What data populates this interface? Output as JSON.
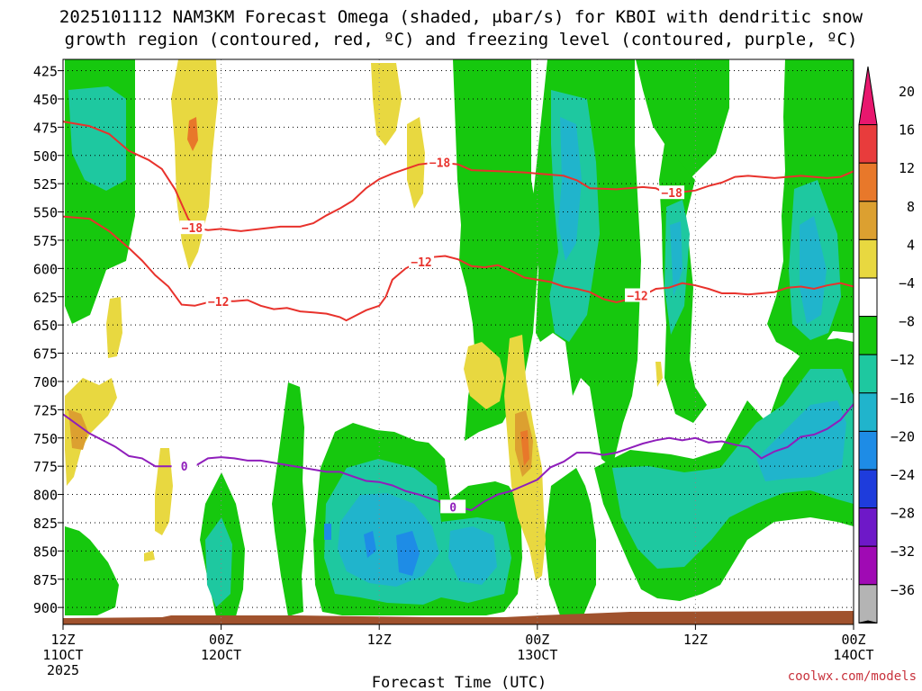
{
  "title": {
    "line1": "2025101112 NAM3KM Forecast Omega (shaded, μbar/s) for KBOI with dendritic snow",
    "line2": "growth region (contoured, red, ºC) and freezing level (contoured, purple, ºC)"
  },
  "credit": "coolwx.com/models",
  "chart_data": {
    "type": "heatmap",
    "title": "2025101112 NAM3KM Forecast Omega (shaded, μbar/s) for KBOI with dendritic snow growth region (contoured, red, ºC) and freezing level (contoured, purple, ºC)",
    "xlabel": "Forecast Time (UTC)",
    "ylabel": "",
    "x_range_hours": [
      0,
      60
    ],
    "y_range_hPa": [
      415,
      915
    ],
    "y_reversed": true,
    "grid": true,
    "y_ticks": [
      425,
      450,
      475,
      500,
      525,
      550,
      575,
      600,
      625,
      650,
      675,
      700,
      725,
      750,
      775,
      800,
      825,
      850,
      875,
      900
    ],
    "x_ticks": [
      {
        "hour": 0,
        "lines": [
          "12Z",
          "11OCT",
          "2025"
        ]
      },
      {
        "hour": 12,
        "lines": [
          "00Z",
          "12OCT"
        ]
      },
      {
        "hour": 24,
        "lines": [
          "12Z"
        ]
      },
      {
        "hour": 36,
        "lines": [
          "00Z",
          "13OCT"
        ]
      },
      {
        "hour": 48,
        "lines": [
          "12Z"
        ]
      },
      {
        "hour": 60,
        "lines": [
          "00Z",
          "14OCT"
        ]
      }
    ],
    "colorbar": {
      "labels": [
        "20",
        "16",
        "12",
        "8",
        "4",
        "−4",
        "−8",
        "−12",
        "−16",
        "−20",
        "−24",
        "−28",
        "−32",
        "−36"
      ],
      "colors_top_to_bottom": [
        "#e8176e",
        "#e83c3c",
        "#e8782a",
        "#dca030",
        "#e8d840",
        "#ffffff",
        "#16c80e",
        "#1ec8a0",
        "#20b4cc",
        "#1e8ce6",
        "#1e3cdc",
        "#6e18c8",
        "#a00ab4",
        "#b4b4b4",
        "#000000"
      ]
    },
    "contours": [
      {
        "name": "dgz_-18",
        "color": "#e8322c",
        "label": "−18",
        "points": [
          [
            0,
            470
          ],
          [
            2,
            474
          ],
          [
            3.5,
            481
          ],
          [
            5,
            496
          ],
          [
            6.5,
            504
          ],
          [
            7.5,
            512
          ],
          [
            8.5,
            530
          ],
          [
            9.5,
            556
          ],
          [
            10,
            564
          ],
          [
            11,
            566
          ],
          [
            12,
            565
          ],
          [
            13.5,
            567
          ],
          [
            15,
            565
          ],
          [
            16.5,
            563
          ],
          [
            18,
            563
          ],
          [
            19,
            560
          ],
          [
            20,
            553
          ],
          [
            21,
            547
          ],
          [
            22,
            540
          ],
          [
            23,
            529
          ],
          [
            24,
            521
          ],
          [
            25,
            516
          ],
          [
            26,
            512
          ],
          [
            27,
            508
          ],
          [
            28.5,
            506
          ],
          [
            30,
            508
          ],
          [
            31,
            513
          ],
          [
            33,
            514
          ],
          [
            35,
            515
          ],
          [
            37,
            517
          ],
          [
            38,
            518
          ],
          [
            39,
            522
          ],
          [
            40,
            529
          ],
          [
            42,
            530
          ],
          [
            44,
            528
          ],
          [
            45,
            529
          ],
          [
            45.5,
            532
          ],
          [
            46.5,
            533
          ],
          [
            48,
            531
          ],
          [
            49,
            527
          ],
          [
            50,
            524
          ],
          [
            51,
            519
          ],
          [
            52,
            518
          ],
          [
            53,
            519
          ],
          [
            54,
            520
          ],
          [
            56,
            518
          ],
          [
            57,
            519
          ],
          [
            58,
            520
          ],
          [
            59,
            519
          ],
          [
            60,
            514
          ]
        ]
      },
      {
        "name": "dgz_-12",
        "color": "#e8322c",
        "label": "−12",
        "points": [
          [
            0,
            554
          ],
          [
            2,
            556
          ],
          [
            3.5,
            567
          ],
          [
            5,
            582
          ],
          [
            6,
            593
          ],
          [
            7,
            606
          ],
          [
            8,
            616
          ],
          [
            9,
            632
          ],
          [
            10,
            633
          ],
          [
            11,
            630
          ],
          [
            12,
            629
          ],
          [
            13,
            629
          ],
          [
            14,
            628
          ],
          [
            15,
            633
          ],
          [
            16,
            636
          ],
          [
            17,
            635
          ],
          [
            18,
            638
          ],
          [
            19,
            639
          ],
          [
            20,
            640
          ],
          [
            21,
            643
          ],
          [
            21.5,
            646
          ],
          [
            22,
            643
          ],
          [
            23,
            637
          ],
          [
            24,
            633
          ],
          [
            24.5,
            625
          ],
          [
            25,
            610
          ],
          [
            26,
            600
          ],
          [
            27,
            594
          ],
          [
            28,
            590
          ],
          [
            29,
            589
          ],
          [
            30,
            592
          ],
          [
            31,
            598
          ],
          [
            32,
            599
          ],
          [
            33,
            597
          ],
          [
            34,
            602
          ],
          [
            35,
            608
          ],
          [
            36,
            610
          ],
          [
            37,
            612
          ],
          [
            38,
            616
          ],
          [
            39,
            618
          ],
          [
            40,
            621
          ],
          [
            41,
            627
          ],
          [
            42,
            630
          ],
          [
            43,
            627
          ],
          [
            44,
            624
          ],
          [
            45,
            618
          ],
          [
            46,
            617
          ],
          [
            47,
            613
          ],
          [
            48,
            615
          ],
          [
            49,
            618
          ],
          [
            50,
            622
          ],
          [
            51,
            622
          ],
          [
            52,
            623
          ],
          [
            53,
            622
          ],
          [
            54,
            621
          ],
          [
            55,
            617
          ],
          [
            56,
            616
          ],
          [
            57,
            618
          ],
          [
            58,
            615
          ],
          [
            59,
            613
          ],
          [
            60,
            616
          ]
        ]
      },
      {
        "name": "freezing_level_0",
        "color": "#8f1ebb",
        "label": "0",
        "points": [
          [
            0,
            729
          ],
          [
            2,
            746
          ],
          [
            4,
            758
          ],
          [
            5,
            766
          ],
          [
            6,
            768
          ],
          [
            7,
            775
          ],
          [
            8,
            775
          ],
          [
            9,
            775
          ],
          [
            10,
            775
          ],
          [
            11,
            768
          ],
          [
            12,
            767
          ],
          [
            13,
            768
          ],
          [
            14,
            770
          ],
          [
            15,
            770
          ],
          [
            16,
            772
          ],
          [
            17,
            774
          ],
          [
            18,
            776
          ],
          [
            19,
            778
          ],
          [
            20,
            780
          ],
          [
            21,
            780
          ],
          [
            22,
            784
          ],
          [
            23,
            788
          ],
          [
            24,
            789
          ],
          [
            25,
            792
          ],
          [
            26,
            797
          ],
          [
            27,
            800
          ],
          [
            28,
            804
          ],
          [
            29,
            808
          ],
          [
            30,
            811
          ],
          [
            31,
            814
          ],
          [
            32,
            806
          ],
          [
            33,
            800
          ],
          [
            34,
            797
          ],
          [
            35,
            792
          ],
          [
            36,
            787
          ],
          [
            37,
            776
          ],
          [
            38,
            771
          ],
          [
            39,
            763
          ],
          [
            40,
            763
          ],
          [
            41,
            765
          ],
          [
            42,
            763
          ],
          [
            43,
            759
          ],
          [
            44,
            755
          ],
          [
            45,
            752
          ],
          [
            46,
            750
          ],
          [
            47,
            752
          ],
          [
            48,
            750
          ],
          [
            49,
            754
          ],
          [
            50,
            753
          ],
          [
            51,
            756
          ],
          [
            52,
            758
          ],
          [
            53,
            768
          ],
          [
            54,
            762
          ],
          [
            55,
            758
          ],
          [
            56,
            749
          ],
          [
            57,
            747
          ],
          [
            58,
            742
          ],
          [
            59,
            734
          ],
          [
            60,
            720
          ]
        ]
      }
    ]
  }
}
